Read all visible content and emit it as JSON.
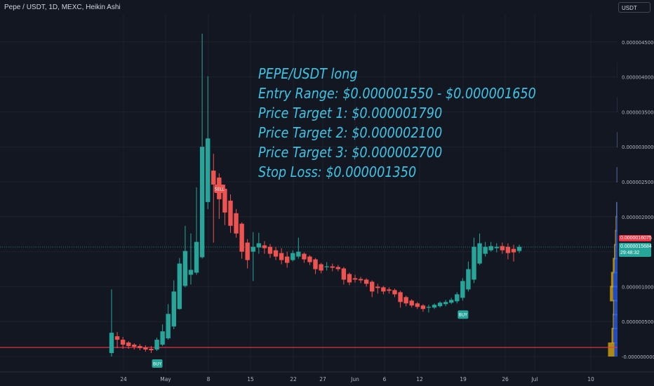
{
  "header": {
    "symbol_title": "Pepe / USDT, 1D, MEXC, Heikin Ashi",
    "currency_button": "USDT"
  },
  "annotation": {
    "lines": [
      "PEPE/USDT long",
      "Entry Range: $0.000001550 - $0.000001650",
      "Price Target 1: $0.000001790",
      "Price Target 2: $0.000002100",
      "Price Target 3: $0.000002700",
      "Stop Loss: $0.000001350"
    ],
    "color": "#3fc3e3"
  },
  "price_tags": {
    "last_price": "0.0000016075",
    "current_price": "0.0000015684",
    "countdown": "29:48:32"
  },
  "colors": {
    "background": "#131722",
    "up": "#26a69a",
    "down": "#ef5350",
    "stop_line": "#f23645",
    "volume_profile_buy": "#2962ff",
    "volume_profile_sell": "#f0b90b"
  },
  "chart_data": {
    "type": "candlestick",
    "style": "Heikin Ashi",
    "x_tick_labels": [
      "24",
      "May",
      "8",
      "15",
      "22",
      "27",
      "Jun",
      "6",
      "12",
      "19",
      "26",
      "Jul",
      "10"
    ],
    "y_tick_labels": [
      "0.0000045000",
      "0.0000040000",
      "0.0000035000",
      "0.0000030000",
      "0.0000025000",
      "0.0000020000",
      "0.0000010000",
      "0.0000005000",
      "-0.0000000000"
    ],
    "ylim": [
      -1e-07,
      5e-06
    ],
    "horizontal_line": 1.3e-07,
    "signals": [
      {
        "label": "SELL",
        "index": 19,
        "price": 2.4e-06,
        "color": "#ef5350"
      },
      {
        "label": "BUY",
        "index": 8,
        "price": -1e-07,
        "color": "#26a69a"
      },
      {
        "label": "BUY",
        "index": 62,
        "price": 6e-07,
        "color": "#26a69a"
      }
    ],
    "candles": [
      {
        "date": "Apr 20",
        "open": 5e-08,
        "high": 9.6e-07,
        "low": 0.0,
        "close": 3.4e-07
      },
      {
        "date": "Apr 21",
        "open": 2.9e-07,
        "high": 3.5e-07,
        "low": 1.2e-07,
        "close": 2.4e-07
      },
      {
        "date": "Apr 22",
        "open": 2.4e-07,
        "high": 2.8e-07,
        "low": 1.1e-07,
        "close": 1.7e-07
      },
      {
        "date": "Apr 23",
        "open": 2e-07,
        "high": 2.2e-07,
        "low": 1.1e-07,
        "close": 1.5e-07
      },
      {
        "date": "Apr 24",
        "open": 1.7e-07,
        "high": 1.9e-07,
        "low": 1e-07,
        "close": 1.4e-07
      },
      {
        "date": "Apr 25",
        "open": 1.5e-07,
        "high": 1.8e-07,
        "low": 9e-08,
        "close": 1.2e-07
      },
      {
        "date": "Apr 26",
        "open": 1.3e-07,
        "high": 1.6e-07,
        "low": 7e-08,
        "close": 1e-07
      },
      {
        "date": "Apr 27",
        "open": 1.1e-07,
        "high": 1.5e-07,
        "low": 5e-08,
        "close": 9e-08
      },
      {
        "date": "Apr 28",
        "open": 1e-07,
        "high": 2.7e-07,
        "low": 8e-08,
        "close": 2.4e-07
      },
      {
        "date": "Apr 29",
        "open": 1.7e-07,
        "high": 4.6e-07,
        "low": 1.5e-07,
        "close": 3.6e-07
      },
      {
        "date": "Apr 30",
        "open": 2.6e-07,
        "high": 7.5e-07,
        "low": 2.4e-07,
        "close": 6.1e-07
      },
      {
        "date": "May 1",
        "open": 4.3e-07,
        "high": 1.09e-06,
        "low": 3.9e-07,
        "close": 9.3e-07
      },
      {
        "date": "May 2",
        "open": 6.8e-07,
        "high": 1.41e-06,
        "low": 6.7e-07,
        "close": 1.33e-06
      },
      {
        "date": "May 3",
        "open": 1.01e-06,
        "high": 1.87e-06,
        "low": 9.9e-07,
        "close": 1.51e-06
      },
      {
        "date": "May 4",
        "open": 1.17e-06,
        "high": 1.76e-06,
        "low": 1.03e-06,
        "close": 1.24e-06
      },
      {
        "date": "May 5",
        "open": 1.2e-06,
        "high": 2.42e-06,
        "low": 1.17e-06,
        "close": 1.64e-06
      },
      {
        "date": "May 6",
        "open": 1.42e-06,
        "high": 4.62e-06,
        "low": 1.4e-06,
        "close": 3e-06
      },
      {
        "date": "May 7",
        "open": 2.21e-06,
        "high": 4.01e-06,
        "low": 2.11e-06,
        "close": 3.12e-06
      },
      {
        "date": "May 8",
        "open": 2.66e-06,
        "high": 2.9e-06,
        "low": 1.63e-06,
        "close": 2.46e-06
      },
      {
        "date": "May 9",
        "open": 2.56e-06,
        "high": 2.62e-06,
        "low": 1.97e-06,
        "close": 2.25e-06
      },
      {
        "date": "May 10",
        "open": 2.4e-06,
        "high": 2.46e-06,
        "low": 1.88e-06,
        "close": 2.06e-06
      },
      {
        "date": "May 11",
        "open": 2.23e-06,
        "high": 2.32e-06,
        "low": 1.77e-06,
        "close": 1.87e-06
      },
      {
        "date": "May 12",
        "open": 2.05e-06,
        "high": 2.11e-06,
        "low": 1.7e-06,
        "close": 1.76e-06
      },
      {
        "date": "May 13",
        "open": 1.9e-06,
        "high": 1.92e-06,
        "low": 1.4e-06,
        "close": 1.5e-06
      },
      {
        "date": "May 14",
        "open": 1.63e-06,
        "high": 1.68e-06,
        "low": 1.26e-06,
        "close": 1.38e-06
      },
      {
        "date": "May 15",
        "open": 1.5e-06,
        "high": 1.78e-06,
        "low": 1.08e-06,
        "close": 1.57e-06
      },
      {
        "date": "May 16",
        "open": 1.56e-06,
        "high": 1.77e-06,
        "low": 1.47e-06,
        "close": 1.62e-06
      },
      {
        "date": "May 17",
        "open": 1.59e-06,
        "high": 1.65e-06,
        "low": 1.47e-06,
        "close": 1.55e-06
      },
      {
        "date": "May 18",
        "open": 1.57e-06,
        "high": 1.61e-06,
        "low": 1.41e-06,
        "close": 1.47e-06
      },
      {
        "date": "May 19",
        "open": 1.52e-06,
        "high": 1.57e-06,
        "low": 1.38e-06,
        "close": 1.43e-06
      },
      {
        "date": "May 20",
        "open": 1.48e-06,
        "high": 1.55e-06,
        "low": 1.32e-06,
        "close": 1.38e-06
      },
      {
        "date": "May 21",
        "open": 1.43e-06,
        "high": 1.5e-06,
        "low": 1.27e-06,
        "close": 1.34e-06
      },
      {
        "date": "May 22",
        "open": 1.38e-06,
        "high": 1.52e-06,
        "low": 1.36e-06,
        "close": 1.48e-06
      },
      {
        "date": "May 23",
        "open": 1.43e-06,
        "high": 1.7e-06,
        "low": 1.4e-06,
        "close": 1.5e-06
      },
      {
        "date": "May 24",
        "open": 1.47e-06,
        "high": 1.49e-06,
        "low": 1.34e-06,
        "close": 1.39e-06
      },
      {
        "date": "May 25",
        "open": 1.43e-06,
        "high": 1.45e-06,
        "low": 1.31e-06,
        "close": 1.35e-06
      },
      {
        "date": "May 26",
        "open": 1.39e-06,
        "high": 1.41e-06,
        "low": 1.18e-06,
        "close": 1.25e-06
      },
      {
        "date": "May 27",
        "open": 1.32e-06,
        "high": 1.34e-06,
        "low": 1.19e-06,
        "close": 1.23e-06
      },
      {
        "date": "May 28",
        "open": 1.28e-06,
        "high": 1.35e-06,
        "low": 1.23e-06,
        "close": 1.29e-06
      },
      {
        "date": "May 29",
        "open": 1.29e-06,
        "high": 1.33e-06,
        "low": 1.22e-06,
        "close": 1.27e-06
      },
      {
        "date": "May 30",
        "open": 1.28e-06,
        "high": 1.31e-06,
        "low": 1.22e-06,
        "close": 1.25e-06
      },
      {
        "date": "May 31",
        "open": 1.26e-06,
        "high": 1.28e-06,
        "low": 1.03e-06,
        "close": 1.1e-06
      },
      {
        "date": "Jun 1",
        "open": 1.18e-06,
        "high": 1.2e-06,
        "low": 1.02e-06,
        "close": 1.06e-06
      },
      {
        "date": "Jun 2",
        "open": 1.12e-06,
        "high": 1.17e-06,
        "low": 1.06e-06,
        "close": 1.1e-06
      },
      {
        "date": "Jun 3",
        "open": 1.11e-06,
        "high": 1.14e-06,
        "low": 1.05e-06,
        "close": 1.09e-06
      },
      {
        "date": "Jun 4",
        "open": 1.1e-06,
        "high": 1.12e-06,
        "low": 1e-06,
        "close": 1.04e-06
      },
      {
        "date": "Jun 5",
        "open": 1.07e-06,
        "high": 1.09e-06,
        "low": 8.5e-07,
        "close": 9.3e-07
      },
      {
        "date": "Jun 6",
        "open": 1e-06,
        "high": 1.04e-06,
        "low": 9e-07,
        "close": 9.8e-07
      },
      {
        "date": "Jun 7",
        "open": 9.9e-07,
        "high": 1.01e-06,
        "low": 8.9e-07,
        "close": 9.3e-07
      },
      {
        "date": "Jun 8",
        "open": 9.6e-07,
        "high": 9.9e-07,
        "low": 9e-07,
        "close": 9.4e-07
      },
      {
        "date": "Jun 9",
        "open": 9.5e-07,
        "high": 9.7e-07,
        "low": 8.5e-07,
        "close": 8.9e-07
      },
      {
        "date": "Jun 10",
        "open": 9.2e-07,
        "high": 9.4e-07,
        "low": 7e-07,
        "close": 7.8e-07
      },
      {
        "date": "Jun 11",
        "open": 8.5e-07,
        "high": 8.7e-07,
        "low": 7.2e-07,
        "close": 7.6e-07
      },
      {
        "date": "Jun 12",
        "open": 8e-07,
        "high": 8.2e-07,
        "low": 7e-07,
        "close": 7.3e-07
      },
      {
        "date": "Jun 13",
        "open": 7.6e-07,
        "high": 7.8e-07,
        "low": 6.8e-07,
        "close": 7.1e-07
      },
      {
        "date": "Jun 14",
        "open": 7.3e-07,
        "high": 7.5e-07,
        "low": 6.4e-07,
        "close": 6.8e-07
      },
      {
        "date": "Jun 15",
        "open": 7e-07,
        "high": 7.4e-07,
        "low": 6.3e-07,
        "close": 7.1e-07
      },
      {
        "date": "Jun 16",
        "open": 7e-07,
        "high": 7.6e-07,
        "low": 6.8e-07,
        "close": 7.4e-07
      },
      {
        "date": "Jun 17",
        "open": 7.2e-07,
        "high": 7.9e-07,
        "low": 7e-07,
        "close": 7.7e-07
      },
      {
        "date": "Jun 18",
        "open": 7.5e-07,
        "high": 8.1e-07,
        "low": 7.2e-07,
        "close": 7.8e-07
      },
      {
        "date": "Jun 19",
        "open": 7.7e-07,
        "high": 8.4e-07,
        "low": 7.5e-07,
        "close": 8.1e-07
      },
      {
        "date": "Jun 20",
        "open": 7.9e-07,
        "high": 9.2e-07,
        "low": 7.6e-07,
        "close": 8.9e-07
      },
      {
        "date": "Jun 21",
        "open": 8.4e-07,
        "high": 1.12e-06,
        "low": 8e-07,
        "close": 1.08e-06
      },
      {
        "date": "Jun 22",
        "open": 9.6e-07,
        "high": 1.36e-06,
        "low": 9.3e-07,
        "close": 1.25e-06
      },
      {
        "date": "Jun 23",
        "open": 1.1e-06,
        "high": 1.7e-06,
        "low": 1.05e-06,
        "close": 1.57e-06
      },
      {
        "date": "Jun 24",
        "open": 1.33e-06,
        "high": 1.76e-06,
        "low": 1.31e-06,
        "close": 1.62e-06
      },
      {
        "date": "Jun 25",
        "open": 1.47e-06,
        "high": 1.64e-06,
        "low": 1.43e-06,
        "close": 1.57e-06
      },
      {
        "date": "Jun 26",
        "open": 1.52e-06,
        "high": 1.64e-06,
        "low": 1.5e-06,
        "close": 1.58e-06
      },
      {
        "date": "Jun 27",
        "open": 1.55e-06,
        "high": 1.62e-06,
        "low": 1.49e-06,
        "close": 1.57e-06
      },
      {
        "date": "Jun 28",
        "open": 1.58e-06,
        "high": 1.63e-06,
        "low": 1.47e-06,
        "close": 1.52e-06
      },
      {
        "date": "Jun 29",
        "open": 1.57e-06,
        "high": 1.62e-06,
        "low": 1.39e-06,
        "close": 1.48e-06
      },
      {
        "date": "Jun 30",
        "open": 1.54e-06,
        "high": 1.6e-06,
        "low": 1.36e-06,
        "close": 1.49e-06
      },
      {
        "date": "Jul 1",
        "open": 1.51e-06,
        "high": 1.6e-06,
        "low": 1.48e-06,
        "close": 1.57e-06
      }
    ],
    "volume_profile": [
      {
        "price": 4.1e-06,
        "buy": 0.3,
        "sell": 0.1
      },
      {
        "price": 3.6e-06,
        "buy": 0.6,
        "sell": 0.2
      },
      {
        "price": 3.1e-06,
        "buy": 1.3,
        "sell": 0.5
      },
      {
        "price": 2.6e-06,
        "buy": 2.0,
        "sell": 0.8
      },
      {
        "price": 2.1e-06,
        "buy": 3.2,
        "sell": 1.1
      },
      {
        "price": 1.9e-06,
        "buy": 4.0,
        "sell": 2.0
      },
      {
        "price": 1.7e-06,
        "buy": 5.2,
        "sell": 2.8
      },
      {
        "price": 1.5e-06,
        "buy": 7.0,
        "sell": 4.0
      },
      {
        "price": 1.3e-06,
        "buy": 9.0,
        "sell": 6.0
      },
      {
        "price": 1.1e-06,
        "buy": 13.0,
        "sell": 7.5
      },
      {
        "price": 9e-07,
        "buy": 14.0,
        "sell": 10.0
      },
      {
        "price": 7e-07,
        "buy": 11.0,
        "sell": 3.0
      },
      {
        "price": 5e-07,
        "buy": 12.0,
        "sell": 3.0
      },
      {
        "price": 3e-07,
        "buy": 13.0,
        "sell": 6.0
      },
      {
        "price": 1e-07,
        "buy": 50.0,
        "sell": 100.0
      }
    ]
  }
}
